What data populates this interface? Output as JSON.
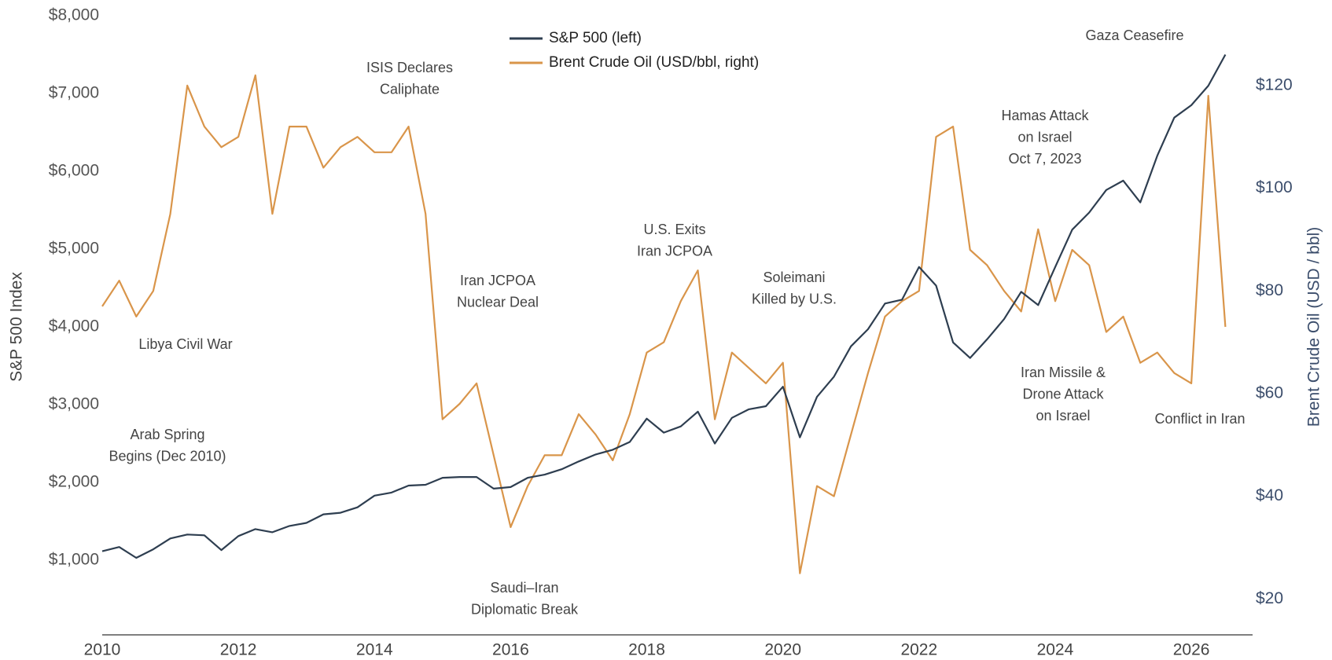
{
  "chart_data": {
    "type": "line",
    "y_label": "S&P 500 Index",
    "y2_label": "Brent Crude Oil (USD / bbl)",
    "x": [
      2010,
      2010.25,
      2010.5,
      2010.75,
      2011,
      2011.25,
      2011.5,
      2011.75,
      2012,
      2012.25,
      2012.5,
      2012.75,
      2013,
      2013.25,
      2013.5,
      2013.75,
      2014,
      2014.25,
      2014.5,
      2014.75,
      2015,
      2015.25,
      2015.5,
      2015.75,
      2016,
      2016.25,
      2016.5,
      2016.75,
      2017,
      2017.25,
      2017.5,
      2017.75,
      2018,
      2018.25,
      2018.5,
      2018.75,
      2019,
      2019.25,
      2019.5,
      2019.75,
      2020,
      2020.25,
      2020.5,
      2020.75,
      2021,
      2021.25,
      2021.5,
      2021.75,
      2022,
      2022.25,
      2022.5,
      2022.75,
      2023,
      2023.25,
      2023.5,
      2023.75,
      2024,
      2024.25,
      2024.5,
      2024.75,
      2025,
      2025.25,
      2025.5,
      2025.75,
      2026,
      2026.25,
      2026.5
    ],
    "series": [
      {
        "name": "S&P 500 (left)",
        "color": "#2e3e50",
        "axis": "y",
        "values": [
          1115,
          1170,
          1030,
          1140,
          1280,
          1330,
          1320,
          1130,
          1310,
          1400,
          1360,
          1440,
          1480,
          1590,
          1610,
          1680,
          1830,
          1870,
          1960,
          1970,
          2060,
          2070,
          2070,
          1920,
          1940,
          2060,
          2100,
          2170,
          2270,
          2360,
          2420,
          2520,
          2820,
          2640,
          2720,
          2910,
          2500,
          2830,
          2940,
          2980,
          3230,
          2580,
          3100,
          3360,
          3750,
          3970,
          4300,
          4350,
          4770,
          4530,
          3800,
          3600,
          3840,
          4100,
          4450,
          4280,
          4770,
          5250,
          5470,
          5760,
          5880,
          5600,
          6200,
          6690,
          6850,
          7100,
          7500
        ]
      },
      {
        "name": "Brent Crude Oil (USD/bbl, right)",
        "color": "#d9954a",
        "axis": "y2",
        "values": [
          77,
          82,
          75,
          80,
          95,
          120,
          112,
          108,
          110,
          122,
          95,
          112,
          112,
          104,
          108,
          110,
          107,
          107,
          112,
          95,
          55,
          58,
          62,
          48,
          34,
          42,
          48,
          48,
          56,
          52,
          47,
          56,
          68,
          70,
          78,
          84,
          55,
          68,
          65,
          62,
          66,
          25,
          42,
          40,
          52,
          64,
          75,
          78,
          80,
          110,
          112,
          88,
          85,
          80,
          76,
          92,
          78,
          88,
          85,
          72,
          75,
          66,
          68,
          64,
          62,
          118,
          73
        ]
      }
    ],
    "xlim": [
      2010,
      2026.9
    ],
    "xticks": [
      2010,
      2012,
      2014,
      2016,
      2018,
      2020,
      2022,
      2024,
      2026
    ],
    "ylim": [
      0,
      8000
    ],
    "yticks": [
      {
        "value": 1000,
        "label": "$1,000"
      },
      {
        "value": 2000,
        "label": "$2,000"
      },
      {
        "value": 3000,
        "label": "$3,000"
      },
      {
        "value": 4000,
        "label": "$4,000"
      },
      {
        "value": 5000,
        "label": "$5,000"
      },
      {
        "value": 6000,
        "label": "$6,000"
      },
      {
        "value": 7000,
        "label": "$7,000"
      },
      {
        "value": 8000,
        "label": "$8,000"
      }
    ],
    "y2lim": [
      12.4,
      133.6
    ],
    "y2ticks": [
      {
        "value": 20,
        "label": "$20"
      },
      {
        "value": 40,
        "label": "$40"
      },
      {
        "value": 60,
        "label": "$60"
      },
      {
        "value": 80,
        "label": "$80"
      },
      {
        "value": 100,
        "label": "$100"
      },
      {
        "value": 120,
        "label": "$120"
      }
    ],
    "grid": false,
    "legend": "top",
    "annotations": [
      [
        "Libya Civil War"
      ],
      [
        "Arab Spring",
        "Begins (Dec 2010)"
      ],
      [
        "ISIS Declares",
        "Caliphate"
      ],
      [
        "Iran JCPOA",
        "Nuclear Deal"
      ],
      [
        "Saudi–Iran",
        "Diplomatic Break"
      ],
      [
        "U.S. Exits",
        "Iran JCPOA"
      ],
      [
        "Soleimani",
        "Killed by U.S."
      ],
      [
        "Hamas Attack",
        "on Israel",
        "Oct 7, 2023"
      ],
      [
        "Gaza Ceasefire"
      ],
      [
        "Iran Missile &",
        "Drone Attack",
        "on Israel"
      ],
      [
        "Conflict in Iran"
      ]
    ]
  }
}
